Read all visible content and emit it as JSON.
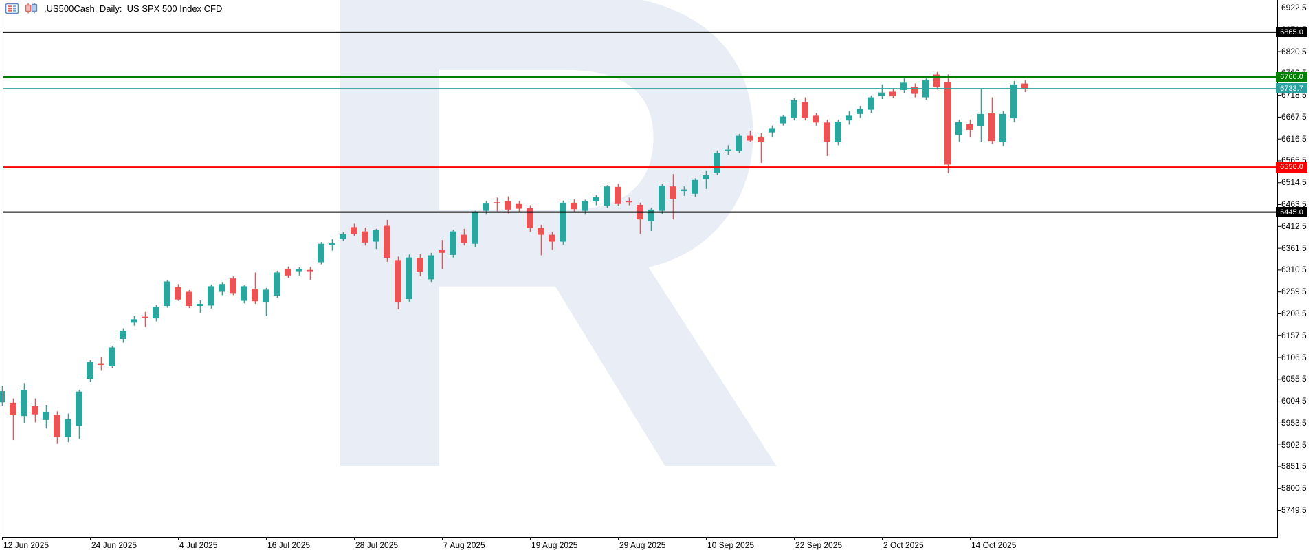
{
  "header": {
    "title": ".US500Cash, Daily:  US SPX 500 Index CFD",
    "icons": [
      "chart-properties-icon",
      "chart-type-candles-icon"
    ]
  },
  "colors": {
    "background": "#ffffff",
    "bull": "#2aa69e",
    "bear": "#ea5455",
    "axis": "#000000",
    "watermark": "#e9edf5",
    "level_black": "#000000",
    "level_green": "#008000",
    "level_red": "#ff0000",
    "current_price_teal": "#2aa3a0"
  },
  "levels": [
    {
      "price": 6865.0,
      "label": "6865.0",
      "color": "#000000",
      "thickness": 2,
      "role": "resistance-line"
    },
    {
      "price": 6760.0,
      "label": "6760.0",
      "color": "#008000",
      "thickness": 3,
      "role": "green-level-line"
    },
    {
      "price": 6733.7,
      "label": "6733.7",
      "color": "#2aa3a0",
      "thickness": 1,
      "role": "current-price-line"
    },
    {
      "price": 6550.0,
      "label": "6550.0",
      "color": "#ff0000",
      "thickness": 2,
      "role": "red-level-line"
    },
    {
      "price": 6445.0,
      "label": "6445.0",
      "color": "#000000",
      "thickness": 2,
      "role": "support-line"
    }
  ],
  "price_axis": {
    "ticks": [
      6922.5,
      6871.5,
      6820.5,
      6769.5,
      6718.5,
      6667.5,
      6616.5,
      6565.5,
      6514.5,
      6463.5,
      6412.5,
      6361.5,
      6310.5,
      6259.5,
      6208.5,
      6157.5,
      6106.5,
      6055.5,
      6004.5,
      5953.5,
      5902.5,
      5851.5,
      5800.5,
      5749.5
    ]
  },
  "time_axis": {
    "labels": [
      {
        "text": "12 Jun 2025",
        "bar_index": 0
      },
      {
        "text": "24 Jun 2025",
        "bar_index": 8
      },
      {
        "text": "4 Jul 2025",
        "bar_index": 16
      },
      {
        "text": "16 Jul 2025",
        "bar_index": 24
      },
      {
        "text": "28 Jul 2025",
        "bar_index": 32
      },
      {
        "text": "7 Aug 2025",
        "bar_index": 40
      },
      {
        "text": "19 Aug 2025",
        "bar_index": 48
      },
      {
        "text": "29 Aug 2025",
        "bar_index": 56
      },
      {
        "text": "10 Sep 2025",
        "bar_index": 64
      },
      {
        "text": "22 Sep 2025",
        "bar_index": 72
      },
      {
        "text": "2 Oct 2025",
        "bar_index": 80
      },
      {
        "text": "14 Oct 2025",
        "bar_index": 88
      }
    ]
  },
  "chart_data": {
    "type": "candlestick",
    "symbol": ".US500Cash",
    "timeframe": "Daily",
    "title": "US SPX 500 Index CFD",
    "ylim": [
      5710,
      6940
    ],
    "price_tick_interval": 51,
    "current_price": 6733.7,
    "columns": [
      "date",
      "open",
      "high",
      "low",
      "close"
    ],
    "candles": [
      [
        "12 Jun 2025",
        6001,
        6040,
        5992,
        6027
      ],
      [
        "13 Jun 2025",
        6000,
        6010,
        5913,
        5971
      ],
      [
        "16 Jun 2025",
        5969,
        6046,
        5952,
        6030
      ],
      [
        "17 Jun 2025",
        5992,
        6010,
        5954,
        5973
      ],
      [
        "18 Jun 2025",
        5960,
        5995,
        5940,
        5978
      ],
      [
        "19 Jun 2025",
        5972,
        5980,
        5904,
        5920
      ],
      [
        "20 Jun 2025",
        5920,
        5975,
        5908,
        5962
      ],
      [
        "23 Jun 2025",
        5946,
        6030,
        5916,
        6026
      ],
      [
        "24 Jun 2025",
        6056,
        6100,
        6048,
        6095
      ],
      [
        "25 Jun 2025",
        6092,
        6106,
        6076,
        6088
      ],
      [
        "26 Jun 2025",
        6085,
        6133,
        6080,
        6129
      ],
      [
        "27 Jun 2025",
        6149,
        6174,
        6140,
        6168
      ],
      [
        "30 Jun 2025",
        6187,
        6202,
        6180,
        6195
      ],
      [
        "1 Jul 2025",
        6201,
        6212,
        6177,
        6198
      ],
      [
        "2 Jul 2025",
        6197,
        6228,
        6190,
        6224
      ],
      [
        "3 Jul 2025",
        6226,
        6286,
        6222,
        6283
      ],
      [
        "4 Jul 2025",
        6270,
        6277,
        6238,
        6241
      ],
      [
        "7 Jul 2025",
        6259,
        6263,
        6221,
        6226
      ],
      [
        "8 Jul 2025",
        6226,
        6239,
        6210,
        6231
      ],
      [
        "9 Jul 2025",
        6227,
        6276,
        6220,
        6272
      ],
      [
        "10 Jul 2025",
        6259,
        6282,
        6251,
        6277
      ],
      [
        "11 Jul 2025",
        6290,
        6295,
        6251,
        6256
      ],
      [
        "14 Jul 2025",
        6238,
        6274,
        6232,
        6272
      ],
      [
        "15 Jul 2025",
        6266,
        6304,
        6231,
        6237
      ],
      [
        "16 Jul 2025",
        6234,
        6268,
        6202,
        6264
      ],
      [
        "17 Jul 2025",
        6250,
        6308,
        6245,
        6304
      ],
      [
        "18 Jul 2025",
        6312,
        6318,
        6291,
        6297
      ],
      [
        "21 Jul 2025",
        6307,
        6316,
        6297,
        6312
      ],
      [
        "22 Jul 2025",
        6310,
        6317,
        6287,
        6307
      ],
      [
        "23 Jul 2025",
        6328,
        6375,
        6323,
        6371
      ],
      [
        "24 Jul 2025",
        6368,
        6382,
        6355,
        6372
      ],
      [
        "25 Jul 2025",
        6382,
        6398,
        6377,
        6393
      ],
      [
        "28 Jul 2025",
        6410,
        6418,
        6389,
        6394
      ],
      [
        "29 Jul 2025",
        6400,
        6409,
        6367,
        6374
      ],
      [
        "30 Jul 2025",
        6376,
        6406,
        6359,
        6403
      ],
      [
        "31 Jul 2025",
        6413,
        6427,
        6329,
        6338
      ],
      [
        "1 Aug 2025",
        6333,
        6341,
        6218,
        6234
      ],
      [
        "4 Aug 2025",
        6242,
        6346,
        6236,
        6339
      ],
      [
        "5 Aug 2025",
        6338,
        6347,
        6295,
        6306
      ],
      [
        "6 Aug 2025",
        6288,
        6350,
        6282,
        6344
      ],
      [
        "7 Aug 2025",
        6356,
        6380,
        6312,
        6350
      ],
      [
        "8 Aug 2025",
        6345,
        6404,
        6339,
        6400
      ],
      [
        "11 Aug 2025",
        6392,
        6406,
        6367,
        6373
      ],
      [
        "12 Aug 2025",
        6371,
        6448,
        6364,
        6445
      ],
      [
        "13 Aug 2025",
        6448,
        6471,
        6439,
        6465
      ],
      [
        "14 Aug 2025",
        6468,
        6479,
        6447,
        6466
      ],
      [
        "15 Aug 2025",
        6471,
        6482,
        6442,
        6451
      ],
      [
        "18 Aug 2025",
        6464,
        6471,
        6444,
        6453
      ],
      [
        "19 Aug 2025",
        6454,
        6461,
        6399,
        6408
      ],
      [
        "20 Aug 2025",
        6408,
        6415,
        6344,
        6392
      ],
      [
        "21 Aug 2025",
        6392,
        6399,
        6357,
        6376
      ],
      [
        "22 Aug 2025",
        6376,
        6472,
        6369,
        6467
      ],
      [
        "25 Aug 2025",
        6467,
        6475,
        6445,
        6452
      ],
      [
        "26 Aug 2025",
        6448,
        6474,
        6439,
        6471
      ],
      [
        "27 Aug 2025",
        6470,
        6485,
        6461,
        6480
      ],
      [
        "28 Aug 2025",
        6460,
        6508,
        6455,
        6505
      ],
      [
        "29 Aug 2025",
        6504,
        6511,
        6459,
        6464
      ],
      [
        "1 Sep 2025",
        6470,
        6479,
        6461,
        6468
      ],
      [
        "2 Sep 2025",
        6462,
        6467,
        6394,
        6428
      ],
      [
        "3 Sep 2025",
        6424,
        6455,
        6401,
        6451
      ],
      [
        "4 Sep 2025",
        6448,
        6510,
        6441,
        6507
      ],
      [
        "5 Sep 2025",
        6505,
        6534,
        6428,
        6476
      ],
      [
        "8 Sep 2025",
        6494,
        6505,
        6483,
        6498
      ],
      [
        "9 Sep 2025",
        6488,
        6524,
        6481,
        6520
      ],
      [
        "10 Sep 2025",
        6522,
        6541,
        6499,
        6531
      ],
      [
        "11 Sep 2025",
        6537,
        6589,
        6531,
        6583
      ],
      [
        "12 Sep 2025",
        6588,
        6601,
        6579,
        6591
      ],
      [
        "15 Sep 2025",
        6588,
        6627,
        6583,
        6623
      ],
      [
        "16 Sep 2025",
        6623,
        6635,
        6609,
        6612
      ],
      [
        "17 Sep 2025",
        6621,
        6629,
        6560,
        6608
      ],
      [
        "18 Sep 2025",
        6631,
        6647,
        6619,
        6641
      ],
      [
        "19 Sep 2025",
        6652,
        6671,
        6647,
        6668
      ],
      [
        "22 Sep 2025",
        6665,
        6711,
        6659,
        6706
      ],
      [
        "23 Sep 2025",
        6702,
        6713,
        6659,
        6665
      ],
      [
        "24 Sep 2025",
        6670,
        6677,
        6647,
        6654
      ],
      [
        "25 Sep 2025",
        6654,
        6661,
        6576,
        6609
      ],
      [
        "26 Sep 2025",
        6608,
        6661,
        6601,
        6656
      ],
      [
        "29 Sep 2025",
        6659,
        6681,
        6649,
        6670
      ],
      [
        "30 Sep 2025",
        6674,
        6693,
        6665,
        6686
      ],
      [
        "1 Oct 2025",
        6684,
        6717,
        6677,
        6713
      ],
      [
        "2 Oct 2025",
        6716,
        6743,
        6709,
        6724
      ],
      [
        "3 Oct 2025",
        6726,
        6733,
        6711,
        6716
      ],
      [
        "6 Oct 2025",
        6730,
        6757,
        6723,
        6747
      ],
      [
        "7 Oct 2025",
        6737,
        6745,
        6713,
        6721
      ],
      [
        "8 Oct 2025",
        6713,
        6757,
        6707,
        6753
      ],
      [
        "9 Oct 2025",
        6766,
        6772,
        6731,
        6737
      ],
      [
        "10 Oct 2025",
        6748,
        6766,
        6536,
        6556
      ],
      [
        "13 Oct 2025",
        6625,
        6661,
        6609,
        6655
      ],
      [
        "14 Oct 2025",
        6650,
        6661,
        6619,
        6637
      ],
      [
        "15 Oct 2025",
        6645,
        6732,
        6608,
        6674
      ],
      [
        "16 Oct 2025",
        6677,
        6713,
        6604,
        6611
      ],
      [
        "17 Oct 2025",
        6608,
        6681,
        6599,
        6674
      ],
      [
        "20 Oct 2025",
        6664,
        6751,
        6655,
        6743
      ],
      [
        "21 Oct 2025",
        6745,
        6753,
        6725,
        6733.7
      ]
    ],
    "legend_position": "none",
    "grid": false,
    "watermark_text": "R"
  }
}
